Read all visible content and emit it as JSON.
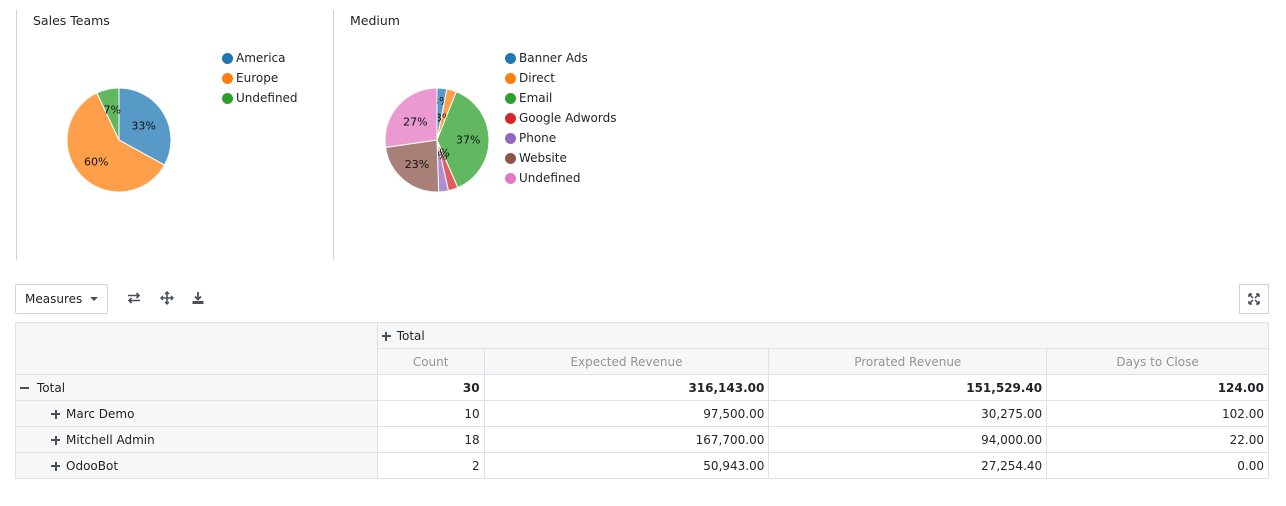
{
  "chart_data": [
    {
      "type": "pie",
      "title": "Sales Teams",
      "labels": [
        "America",
        "Europe",
        "Undefined"
      ],
      "values": [
        33,
        60,
        7
      ],
      "value_labels": [
        "33%",
        "60%",
        "7%"
      ],
      "colors": [
        "#1f77b4",
        "#ff7f0e",
        "#2ca02c"
      ],
      "legend": "right"
    },
    {
      "type": "pie",
      "title": "Medium",
      "labels": [
        "Banner Ads",
        "Direct",
        "Email",
        "Google Adwords",
        "Phone",
        "Website",
        "Undefined"
      ],
      "values": [
        3,
        3,
        37,
        3,
        3,
        23,
        27
      ],
      "value_labels": [
        "3%",
        "3%",
        "37%",
        "3%",
        "3%",
        "23%",
        "27%"
      ],
      "colors": [
        "#1f77b4",
        "#ff7f0e",
        "#2ca02c",
        "#d62728",
        "#9467bd",
        "#8c564b",
        "#e377c2"
      ],
      "legend": "right"
    }
  ],
  "toolbar": {
    "measures_label": "Measures",
    "icons": [
      "flip-axis-icon",
      "expand-all-icon",
      "download-icon",
      "fullscreen-icon"
    ]
  },
  "table": {
    "col_header": "Total",
    "measures": [
      "Count",
      "Expected Revenue",
      "Prorated Revenue",
      "Days to Close"
    ],
    "total_row": {
      "label": "Total",
      "values": [
        "30",
        "316,143.00",
        "151,529.40",
        "124.00"
      ]
    },
    "rows": [
      {
        "label": "Marc Demo",
        "values": [
          "10",
          "97,500.00",
          "30,275.00",
          "102.00"
        ]
      },
      {
        "label": "Mitchell Admin",
        "values": [
          "18",
          "167,700.00",
          "94,000.00",
          "22.00"
        ]
      },
      {
        "label": "OdooBot",
        "values": [
          "2",
          "50,943.00",
          "27,254.40",
          "0.00"
        ]
      }
    ]
  }
}
